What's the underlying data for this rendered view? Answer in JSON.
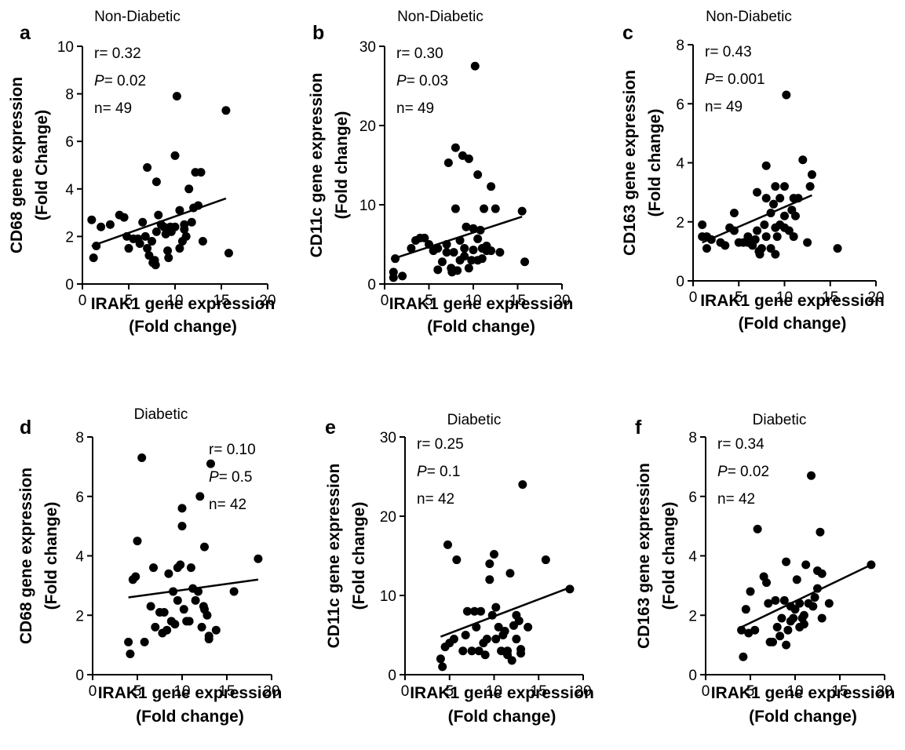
{
  "chart_data": [
    {
      "panel": "a",
      "title": "Non-Diabetic",
      "type": "scatter",
      "xlabel": "IRAK1 gene expression",
      "xlabel2": "(Fold change)",
      "ylabel": "CD68 gene expression",
      "ylabel2": "(Fold Change)",
      "xlim": [
        0,
        20
      ],
      "ylim": [
        0,
        10
      ],
      "xticks": [
        0,
        5,
        10,
        15,
        20
      ],
      "yticks": [
        0,
        2,
        4,
        6,
        8,
        10
      ],
      "stats": {
        "r": "0.32",
        "p": "0.02",
        "n": "49"
      },
      "stats_position": "top-left",
      "fit": [
        [
          1,
          1.6
        ],
        [
          15.5,
          3.6
        ]
      ],
      "points": [
        [
          1,
          2.7
        ],
        [
          1.2,
          1.1
        ],
        [
          1.5,
          1.6
        ],
        [
          2,
          2.4
        ],
        [
          3,
          2.5
        ],
        [
          4,
          2.9
        ],
        [
          4.5,
          2.8
        ],
        [
          4.8,
          2
        ],
        [
          5,
          1.5
        ],
        [
          5.5,
          1.9
        ],
        [
          6,
          1.9
        ],
        [
          6.2,
          1.7
        ],
        [
          6.5,
          2.6
        ],
        [
          6.8,
          2
        ],
        [
          7,
          4.9
        ],
        [
          7,
          1.5
        ],
        [
          7.2,
          1.2
        ],
        [
          7.5,
          1.8
        ],
        [
          7.6,
          0.9
        ],
        [
          7.8,
          1
        ],
        [
          7.9,
          0.8
        ],
        [
          8,
          2.2
        ],
        [
          8,
          4.3
        ],
        [
          8.2,
          2.9
        ],
        [
          8.5,
          2.5
        ],
        [
          8.8,
          2.4
        ],
        [
          9,
          2.1
        ],
        [
          9.2,
          1.4
        ],
        [
          9.3,
          1.1
        ],
        [
          9.5,
          2.4
        ],
        [
          9.6,
          2.2
        ],
        [
          10,
          2.4
        ],
        [
          10,
          5.4
        ],
        [
          10.2,
          7.9
        ],
        [
          10.5,
          1.5
        ],
        [
          10.5,
          3.1
        ],
        [
          10.8,
          1.8
        ],
        [
          11,
          2.5
        ],
        [
          11,
          2.3
        ],
        [
          11.2,
          2
        ],
        [
          11.5,
          4
        ],
        [
          11.8,
          2.6
        ],
        [
          12,
          3.2
        ],
        [
          12.2,
          4.7
        ],
        [
          12.5,
          3.3
        ],
        [
          12.8,
          4.7
        ],
        [
          13,
          1.8
        ],
        [
          15.5,
          7.3
        ],
        [
          15.8,
          1.3
        ]
      ]
    },
    {
      "panel": "b",
      "title": "Non-Diabetic",
      "type": "scatter",
      "xlabel": "IRAK1 gene expression",
      "xlabel2": "(Fold change)",
      "ylabel": "CD11c gene expression",
      "ylabel2": "(Fold change)",
      "xlim": [
        0,
        20
      ],
      "ylim": [
        0,
        30
      ],
      "xticks": [
        0,
        5,
        10,
        15,
        20
      ],
      "yticks": [
        0,
        10,
        20,
        30
      ],
      "stats": {
        "r": "0.30",
        "p": "0.03",
        "n": "49"
      },
      "stats_position": "top-left",
      "fit": [
        [
          1,
          3.2
        ],
        [
          15.5,
          8.5
        ]
      ],
      "points": [
        [
          1,
          1.5
        ],
        [
          1,
          0.8
        ],
        [
          1.2,
          3.2
        ],
        [
          2,
          1
        ],
        [
          3,
          4.5
        ],
        [
          3.5,
          5.5
        ],
        [
          4,
          5.8
        ],
        [
          4.5,
          5.8
        ],
        [
          5,
          5
        ],
        [
          5.5,
          4.2
        ],
        [
          6,
          1.8
        ],
        [
          6,
          4.5
        ],
        [
          6.5,
          2.8
        ],
        [
          7,
          5
        ],
        [
          7,
          4
        ],
        [
          7.2,
          15.3
        ],
        [
          7.5,
          2
        ],
        [
          7.6,
          1.5
        ],
        [
          7.8,
          4
        ],
        [
          8,
          9.5
        ],
        [
          8,
          17.2
        ],
        [
          8.2,
          1.7
        ],
        [
          8.5,
          5.5
        ],
        [
          8.5,
          3
        ],
        [
          8.8,
          16.2
        ],
        [
          9,
          4.5
        ],
        [
          9,
          3.5
        ],
        [
          9.2,
          7.2
        ],
        [
          9.5,
          2
        ],
        [
          9.5,
          15.8
        ],
        [
          9.8,
          3
        ],
        [
          10,
          4.3
        ],
        [
          10,
          7
        ],
        [
          10.2,
          27.5
        ],
        [
          10.5,
          5.7
        ],
        [
          10.5,
          3
        ],
        [
          10.5,
          13.8
        ],
        [
          10.8,
          6.8
        ],
        [
          11,
          4.5
        ],
        [
          11,
          3.2
        ],
        [
          11.2,
          9.5
        ],
        [
          11.5,
          4.2
        ],
        [
          11.5,
          4.8
        ],
        [
          12,
          12.3
        ],
        [
          12,
          4.2
        ],
        [
          12.5,
          9.5
        ],
        [
          13,
          4
        ],
        [
          15.5,
          9.2
        ],
        [
          15.8,
          2.8
        ]
      ]
    },
    {
      "panel": "c",
      "title": "Non-Diabetic",
      "type": "scatter",
      "xlabel": "IRAK1 gene expression",
      "xlabel2": "(Fold change)",
      "ylabel": "CD163 gene expression",
      "ylabel2": "(Fold change)",
      "xlim": [
        0,
        20
      ],
      "ylim": [
        0,
        8
      ],
      "xticks": [
        0,
        5,
        10,
        15,
        20
      ],
      "yticks": [
        0,
        2,
        4,
        6,
        8
      ],
      "stats": {
        "r": "0.43",
        "p": "0.001",
        "n": "49"
      },
      "stats_position": "top-left",
      "fit": [
        [
          1,
          1.3
        ],
        [
          13,
          2.9
        ]
      ],
      "points": [
        [
          1,
          1.9
        ],
        [
          1,
          1.5
        ],
        [
          1.5,
          1.5
        ],
        [
          1.5,
          1.1
        ],
        [
          2,
          1.4
        ],
        [
          3,
          1.3
        ],
        [
          3.5,
          1.2
        ],
        [
          4,
          1.8
        ],
        [
          4.5,
          2.3
        ],
        [
          4.5,
          1.7
        ],
        [
          5,
          1.3
        ],
        [
          5.5,
          1.3
        ],
        [
          6,
          1.5
        ],
        [
          6,
          1.3
        ],
        [
          6.5,
          1.2
        ],
        [
          6.8,
          1.4
        ],
        [
          7,
          3
        ],
        [
          7,
          1.7
        ],
        [
          7.2,
          1
        ],
        [
          7.3,
          0.9
        ],
        [
          7.5,
          1.1
        ],
        [
          7.8,
          1.9
        ],
        [
          8,
          2.8
        ],
        [
          8,
          1.5
        ],
        [
          8,
          3.9
        ],
        [
          8.5,
          2.3
        ],
        [
          8.5,
          1.1
        ],
        [
          8.8,
          2.6
        ],
        [
          9,
          3.2
        ],
        [
          9,
          1.8
        ],
        [
          9,
          0.9
        ],
        [
          9.2,
          1.5
        ],
        [
          9.5,
          1.9
        ],
        [
          9.5,
          2.8
        ],
        [
          10,
          3.2
        ],
        [
          10,
          2.2
        ],
        [
          10,
          1.8
        ],
        [
          10.2,
          6.3
        ],
        [
          10.5,
          1.7
        ],
        [
          10.8,
          2.4
        ],
        [
          11,
          2.8
        ],
        [
          11,
          1.5
        ],
        [
          11.2,
          2.2
        ],
        [
          11.5,
          2.8
        ],
        [
          12,
          4.1
        ],
        [
          12.5,
          1.3
        ],
        [
          12.8,
          3.2
        ],
        [
          13,
          3.6
        ],
        [
          15.8,
          1.1
        ]
      ]
    },
    {
      "panel": "d",
      "title": "Diabetic",
      "type": "scatter",
      "xlabel": "IRAK1 gene expression",
      "xlabel2": "(Fold change)",
      "ylabel": "CD68 gene expression",
      "ylabel2": "(Fold change)",
      "xlim": [
        0,
        20
      ],
      "ylim": [
        0,
        8
      ],
      "xticks": [
        0,
        5,
        10,
        15,
        20
      ],
      "yticks": [
        0,
        2,
        4,
        6,
        8
      ],
      "stats": {
        "r": "0.10",
        "p": "0.5",
        "n": "42"
      },
      "stats_position": "top-right",
      "fit": [
        [
          4,
          2.6
        ],
        [
          18.5,
          3.2
        ]
      ],
      "points": [
        [
          4,
          1.1
        ],
        [
          4.2,
          0.7
        ],
        [
          4.5,
          3.2
        ],
        [
          4.8,
          3.3
        ],
        [
          5,
          4.5
        ],
        [
          5.5,
          7.3
        ],
        [
          5.8,
          1.1
        ],
        [
          6.5,
          2.3
        ],
        [
          6.8,
          3.6
        ],
        [
          7,
          1.6
        ],
        [
          7.5,
          2.1
        ],
        [
          7.8,
          1.4
        ],
        [
          8,
          2.1
        ],
        [
          8.3,
          1.5
        ],
        [
          8.5,
          3.4
        ],
        [
          8.8,
          1.8
        ],
        [
          9,
          2.8
        ],
        [
          9.2,
          1.7
        ],
        [
          9.5,
          2.5
        ],
        [
          9.5,
          3.6
        ],
        [
          9.8,
          3.7
        ],
        [
          10,
          5.6
        ],
        [
          10,
          5
        ],
        [
          10.2,
          2.2
        ],
        [
          10.5,
          1.8
        ],
        [
          10.8,
          1.8
        ],
        [
          11,
          3.6
        ],
        [
          11.2,
          2.9
        ],
        [
          11.5,
          2.5
        ],
        [
          11.8,
          2.8
        ],
        [
          12,
          6
        ],
        [
          12.2,
          1.6
        ],
        [
          12.5,
          2.2
        ],
        [
          12.5,
          4.3
        ],
        [
          12.8,
          2
        ],
        [
          13,
          1.3
        ],
        [
          13,
          1.2
        ],
        [
          13.2,
          7.1
        ],
        [
          13.8,
          1.5
        ],
        [
          15.8,
          2.8
        ],
        [
          18.5,
          3.9
        ],
        [
          12.4,
          2.3
        ]
      ]
    },
    {
      "panel": "e",
      "title": "Diabetic",
      "type": "scatter",
      "xlabel": "IRAK1 gene expression",
      "xlabel2": "(Fold change)",
      "ylabel": "CD11c gene expression",
      "ylabel2": "(Fold change)",
      "xlim": [
        0,
        20
      ],
      "ylim": [
        0,
        30
      ],
      "xticks": [
        0,
        5,
        10,
        15,
        20
      ],
      "yticks": [
        0,
        10,
        20,
        30
      ],
      "stats": {
        "r": "0.25",
        "p": "0.1",
        "n": "42"
      },
      "stats_position": "top-left",
      "fit": [
        [
          4,
          4.8
        ],
        [
          18.5,
          11
        ]
      ],
      "points": [
        [
          4,
          2
        ],
        [
          4.2,
          1
        ],
        [
          4.5,
          3.5
        ],
        [
          4.8,
          16.4
        ],
        [
          5,
          4
        ],
        [
          5.5,
          4.5
        ],
        [
          5.8,
          14.5
        ],
        [
          6.5,
          3
        ],
        [
          6.8,
          5
        ],
        [
          7,
          8
        ],
        [
          7.5,
          3
        ],
        [
          7.8,
          8
        ],
        [
          8,
          6
        ],
        [
          8.3,
          3
        ],
        [
          8.5,
          8
        ],
        [
          8.8,
          4
        ],
        [
          9,
          2.5
        ],
        [
          9.2,
          4.5
        ],
        [
          9.5,
          12
        ],
        [
          9.5,
          14
        ],
        [
          9.8,
          7.5
        ],
        [
          10,
          15.2
        ],
        [
          10.2,
          8.5
        ],
        [
          10.5,
          6
        ],
        [
          10.8,
          3
        ],
        [
          11,
          5
        ],
        [
          11.2,
          5.5
        ],
        [
          11.5,
          2.5
        ],
        [
          11.8,
          12.8
        ],
        [
          12,
          1.8
        ],
        [
          12.2,
          6.2
        ],
        [
          12.5,
          7.5
        ],
        [
          12.5,
          4.5
        ],
        [
          12.8,
          6.8
        ],
        [
          13,
          3.2
        ],
        [
          13,
          2.7
        ],
        [
          13.2,
          24
        ],
        [
          13.8,
          6
        ],
        [
          15.8,
          14.5
        ],
        [
          18.5,
          10.8
        ],
        [
          11.5,
          3
        ],
        [
          10.2,
          4.5
        ]
      ]
    },
    {
      "panel": "f",
      "title": "Diabetic",
      "type": "scatter",
      "xlabel": "IRAK1 gene expression",
      "xlabel2": "(Fold change)",
      "ylabel": "CD163 gene expression",
      "ylabel2": "(Fold change)",
      "xlim": [
        0,
        20
      ],
      "ylim": [
        0,
        8
      ],
      "xticks": [
        0,
        5,
        10,
        15,
        20
      ],
      "yticks": [
        0,
        2,
        4,
        6,
        8
      ],
      "stats": {
        "r": "0.34",
        "p": "0.02",
        "n": "42"
      },
      "stats_position": "top-left",
      "fit": [
        [
          4,
          1.6
        ],
        [
          18.5,
          3.7
        ]
      ],
      "points": [
        [
          4,
          1.5
        ],
        [
          4.2,
          0.6
        ],
        [
          4.5,
          2.2
        ],
        [
          4.8,
          1.4
        ],
        [
          5,
          2.8
        ],
        [
          5.5,
          1.5
        ],
        [
          5.8,
          4.9
        ],
        [
          6.5,
          3.3
        ],
        [
          6.8,
          3.1
        ],
        [
          7,
          2.4
        ],
        [
          7.5,
          1.1
        ],
        [
          7.8,
          2.5
        ],
        [
          8,
          1.6
        ],
        [
          8.3,
          1.3
        ],
        [
          8.5,
          1.9
        ],
        [
          8.8,
          2.5
        ],
        [
          9,
          3.8
        ],
        [
          9.2,
          1.5
        ],
        [
          9.5,
          1.8
        ],
        [
          9.5,
          2.3
        ],
        [
          9.8,
          1.9
        ],
        [
          10,
          2.2
        ],
        [
          10.2,
          3.2
        ],
        [
          10.5,
          2.4
        ],
        [
          10.8,
          1.9
        ],
        [
          11,
          1.7
        ],
        [
          11.2,
          3.7
        ],
        [
          11.5,
          2.4
        ],
        [
          11.8,
          6.7
        ],
        [
          12,
          2.3
        ],
        [
          12.2,
          2.6
        ],
        [
          12.5,
          3.5
        ],
        [
          12.5,
          2.9
        ],
        [
          12.8,
          4.8
        ],
        [
          13,
          3.4
        ],
        [
          13,
          1.9
        ],
        [
          13.8,
          2.4
        ],
        [
          18.5,
          3.7
        ],
        [
          10.5,
          1.6
        ],
        [
          9,
          1.0
        ],
        [
          7.2,
          1.1
        ],
        [
          11,
          2.0
        ]
      ]
    }
  ]
}
